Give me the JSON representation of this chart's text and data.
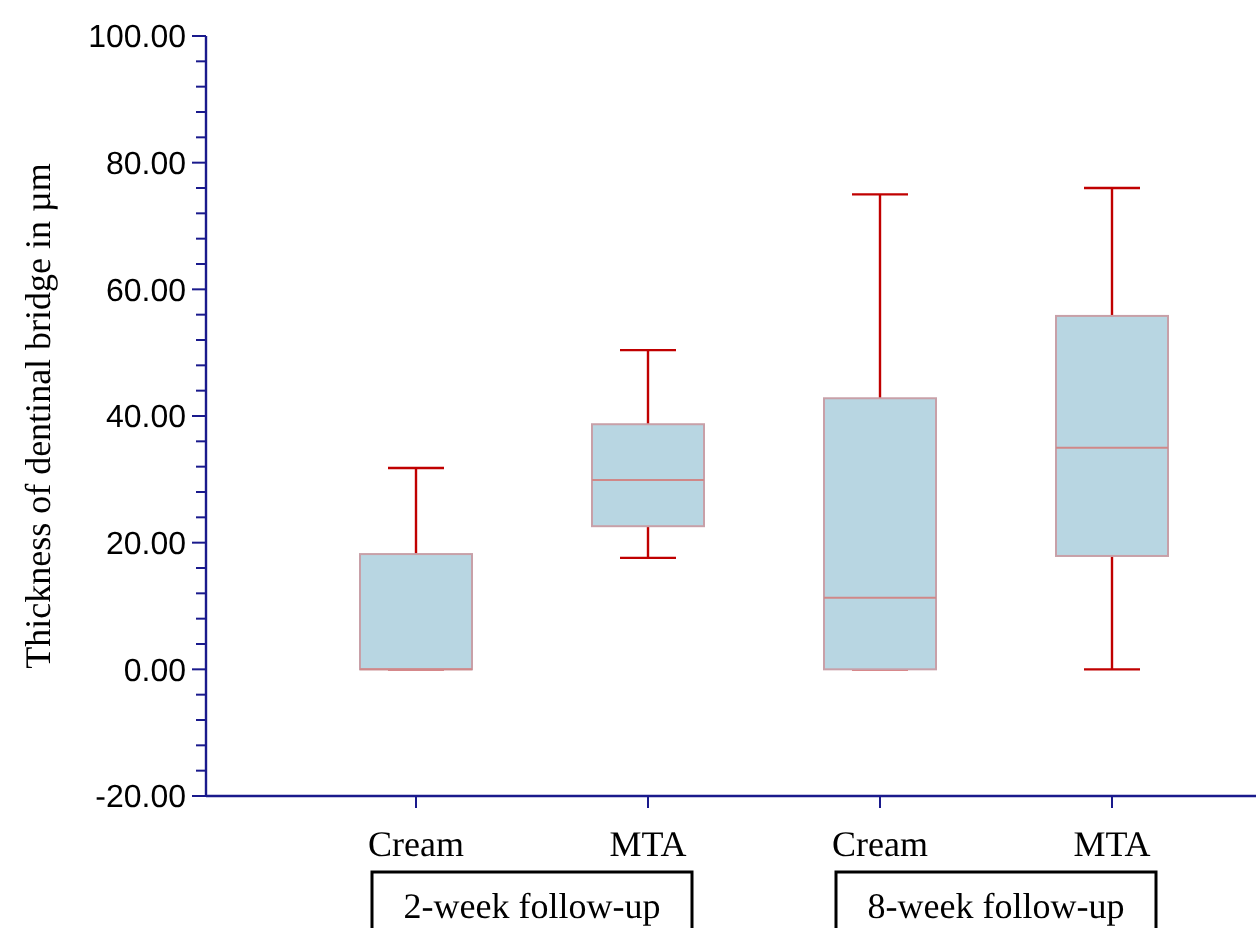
{
  "chart_data": {
    "type": "box",
    "ylabel": "Thickness of dentinal bridge in µm",
    "categories": [
      "Cream",
      "MTA",
      "Cream",
      "MTA"
    ],
    "color": "#b8d6e2",
    "boxes": [
      {
        "low": 0,
        "q1": 0,
        "median": 0,
        "q3": 18.2,
        "high": 31.8
      },
      {
        "low": 17.6,
        "q1": 22.6,
        "median": 29.9,
        "q3": 38.7,
        "high": 50.4
      },
      {
        "low": 0,
        "q1": 0,
        "median": 11.3,
        "q3": 42.8,
        "high": 75
      },
      {
        "low": 0,
        "q1": 17.9,
        "median": 35,
        "q3": 55.8,
        "high": 76
      }
    ],
    "annotations": [
      "2-week follow-up",
      "8-week follow-up"
    ],
    "ylim": [
      -20,
      100
    ],
    "yticks": [
      {
        "value": -20,
        "label": "-20.00"
      },
      {
        "value": -16,
        "label": null
      },
      {
        "value": -12,
        "label": null
      },
      {
        "value": -8,
        "label": null
      },
      {
        "value": -4,
        "label": null
      },
      {
        "value": 0,
        "label": "0.00"
      },
      {
        "value": 4,
        "label": null
      },
      {
        "value": 8,
        "label": null
      },
      {
        "value": 12,
        "label": null
      },
      {
        "value": 16,
        "label": null
      },
      {
        "value": 20,
        "label": "20.00"
      },
      {
        "value": 24,
        "label": null
      },
      {
        "value": 28,
        "label": null
      },
      {
        "value": 32,
        "label": null
      },
      {
        "value": 36,
        "label": null
      },
      {
        "value": 40,
        "label": "40.00"
      },
      {
        "value": 44,
        "label": null
      },
      {
        "value": 48,
        "label": null
      },
      {
        "value": 52,
        "label": null
      },
      {
        "value": 56,
        "label": null
      },
      {
        "value": 60,
        "label": "60.00"
      },
      {
        "value": 64,
        "label": null
      },
      {
        "value": 68,
        "label": null
      },
      {
        "value": 72,
        "label": null
      },
      {
        "value": 76,
        "label": null
      },
      {
        "value": 80,
        "label": "80.00"
      },
      {
        "value": 84,
        "label": null
      },
      {
        "value": 88,
        "label": null
      },
      {
        "value": 92,
        "label": null
      },
      {
        "value": 96,
        "label": null
      },
      {
        "value": 100,
        "label": "100.00"
      }
    ]
  }
}
